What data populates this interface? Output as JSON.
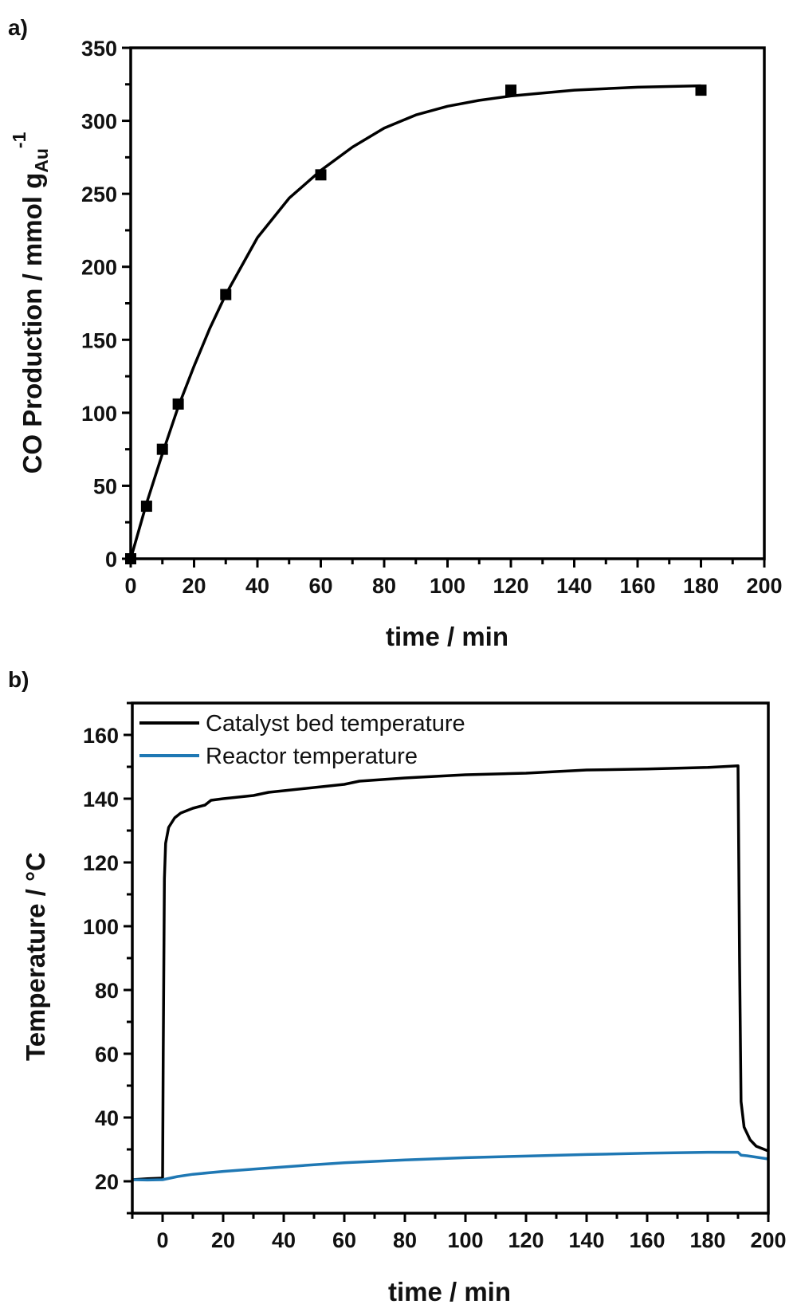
{
  "chart_data": [
    {
      "type": "scatter",
      "panel_label": "a)",
      "xlabel": "time / min",
      "ylabel": {
        "main": "CO Production / mmol g",
        "subscript": "Au",
        "superscript": "-1"
      },
      "xlim": [
        0,
        200
      ],
      "ylim": [
        0,
        350
      ],
      "xticks": [
        0,
        20,
        40,
        60,
        80,
        100,
        120,
        140,
        160,
        180,
        200
      ],
      "yticks": [
        0,
        50,
        100,
        150,
        200,
        250,
        300,
        350
      ],
      "grid": false,
      "series": [
        {
          "kind": "points",
          "marker": "square",
          "color": "#000000",
          "x": [
            0,
            5,
            10,
            15,
            30,
            60,
            120,
            180
          ],
          "y": [
            0,
            36,
            75,
            106,
            181,
            263,
            321,
            321
          ]
        },
        {
          "kind": "fit-line",
          "color": "#000000",
          "x": [
            0,
            5,
            10,
            15,
            20,
            25,
            30,
            40,
            50,
            60,
            70,
            80,
            90,
            100,
            110,
            120,
            140,
            160,
            180
          ],
          "y": [
            0,
            38,
            72,
            104,
            132,
            158,
            181,
            220,
            247,
            266,
            282,
            295,
            304,
            310,
            314,
            317,
            321,
            323,
            324
          ]
        }
      ]
    },
    {
      "type": "line",
      "panel_label": "b)",
      "xlabel": "time / min",
      "ylabel": "Temperature / °C",
      "xlim": [
        -10,
        200
      ],
      "ylim": [
        10,
        170
      ],
      "xticks": [
        0,
        20,
        40,
        60,
        80,
        100,
        120,
        140,
        160,
        180,
        200
      ],
      "yticks": [
        20,
        40,
        60,
        80,
        100,
        120,
        140,
        160
      ],
      "grid": false,
      "legend_position": "top-left",
      "series": [
        {
          "name": "Catalyst bed temperature",
          "color": "#000000",
          "x": [
            -10,
            -5,
            0,
            0.2,
            0.6,
            1,
            2,
            4,
            6,
            10,
            14,
            16,
            20,
            30,
            35,
            45,
            55,
            60,
            65,
            80,
            90,
            100,
            120,
            130,
            140,
            160,
            180,
            190,
            190.5,
            191,
            192,
            194,
            196,
            200
          ],
          "y": [
            20.5,
            20.8,
            21,
            60,
            115,
            126,
            131,
            134,
            135.5,
            137,
            138,
            139.5,
            140,
            141,
            142,
            143,
            144,
            144.5,
            145.5,
            146.5,
            147,
            147.5,
            148,
            148.5,
            149,
            149.3,
            149.8,
            150.3,
            90,
            45,
            37,
            33,
            31,
            29.5
          ]
        },
        {
          "name": "Reactor temperature",
          "color": "#1f78b4",
          "x": [
            -10,
            -5,
            0,
            5,
            10,
            20,
            30,
            40,
            50,
            60,
            80,
            100,
            120,
            140,
            160,
            180,
            190,
            191,
            193,
            200
          ],
          "y": [
            20.5,
            20.4,
            20.5,
            21.5,
            22.2,
            23.1,
            23.8,
            24.5,
            25.2,
            25.8,
            26.7,
            27.4,
            27.9,
            28.4,
            28.8,
            29.1,
            29.1,
            28.2,
            28.0,
            27.0
          ]
        }
      ]
    }
  ]
}
